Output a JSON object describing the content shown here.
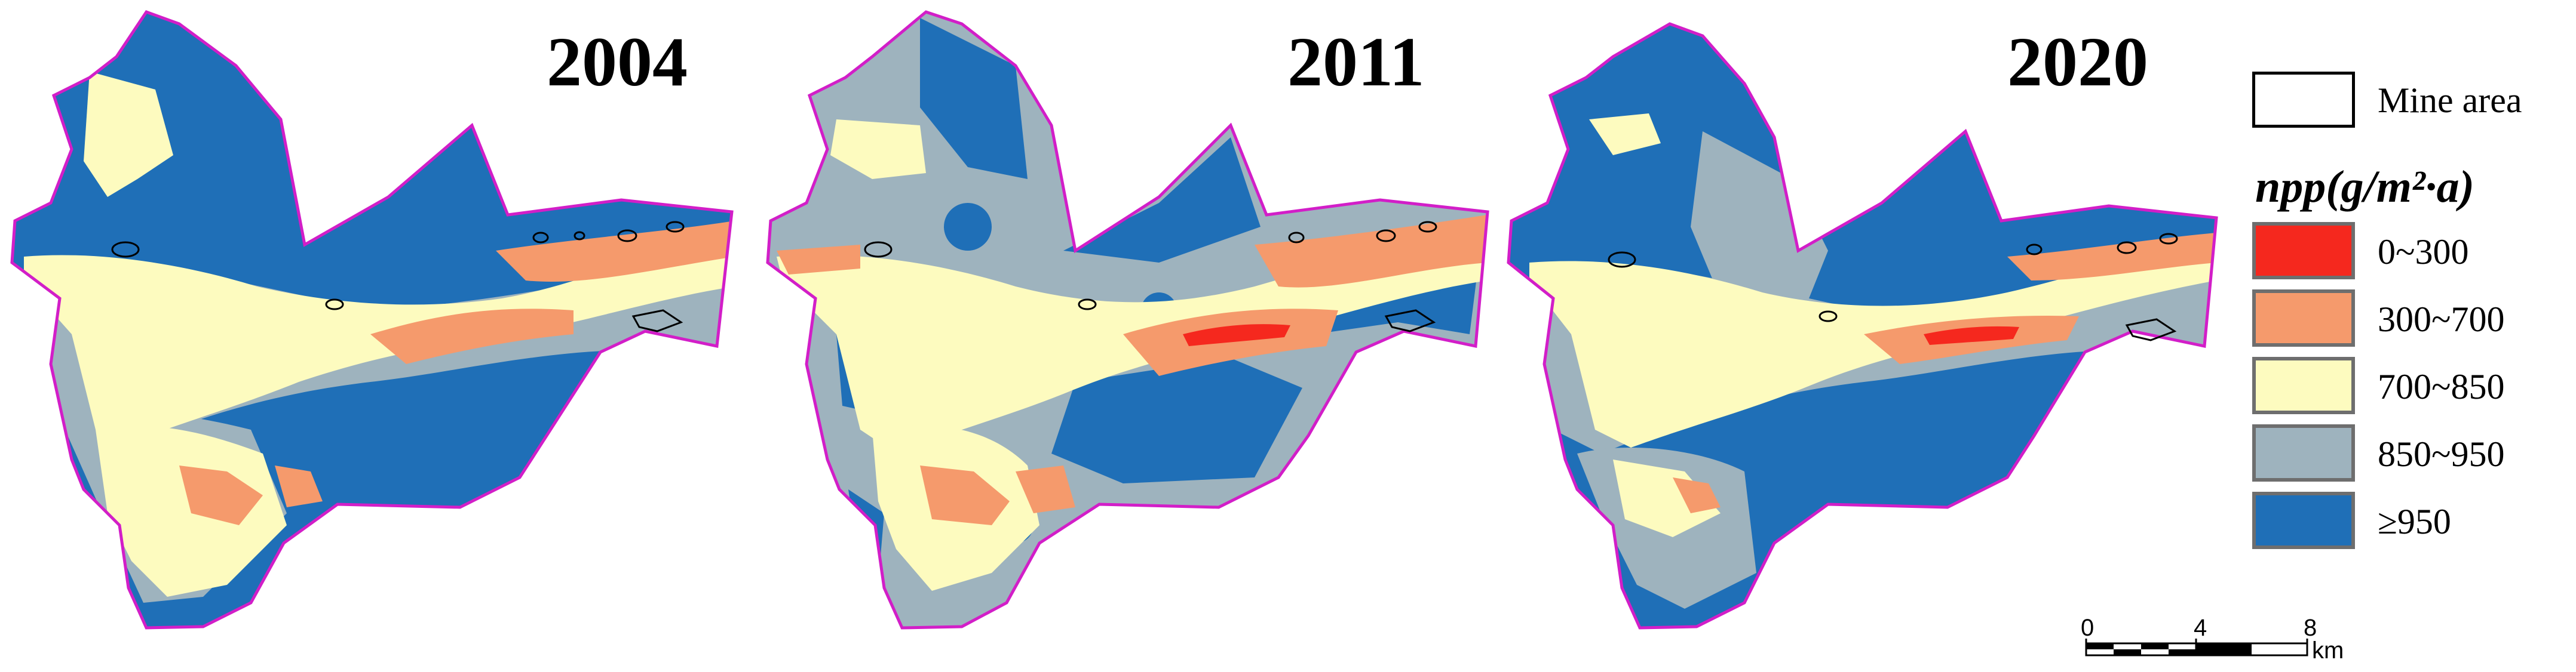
{
  "panels": [
    {
      "year": "2004"
    },
    {
      "year": "2011"
    },
    {
      "year": "2020"
    }
  ],
  "legend": {
    "mine_area_label": "Mine area",
    "title": "npp(g/m²·a)",
    "classes": [
      {
        "label": "0~300",
        "color": "#f5281e"
      },
      {
        "label": "300~700",
        "color": "#f59a6c"
      },
      {
        "label": "700~850",
        "color": "#fdfbbf"
      },
      {
        "label": "850~950",
        "color": "#9eb3be"
      },
      {
        "label": "≥950",
        "color": "#1f6fb7"
      }
    ]
  },
  "scale_bar": {
    "ticks": [
      "0",
      "4",
      "8"
    ],
    "unit": "km"
  },
  "colors": {
    "boundary": "#d21ec8",
    "mine_outline": "#000000"
  }
}
